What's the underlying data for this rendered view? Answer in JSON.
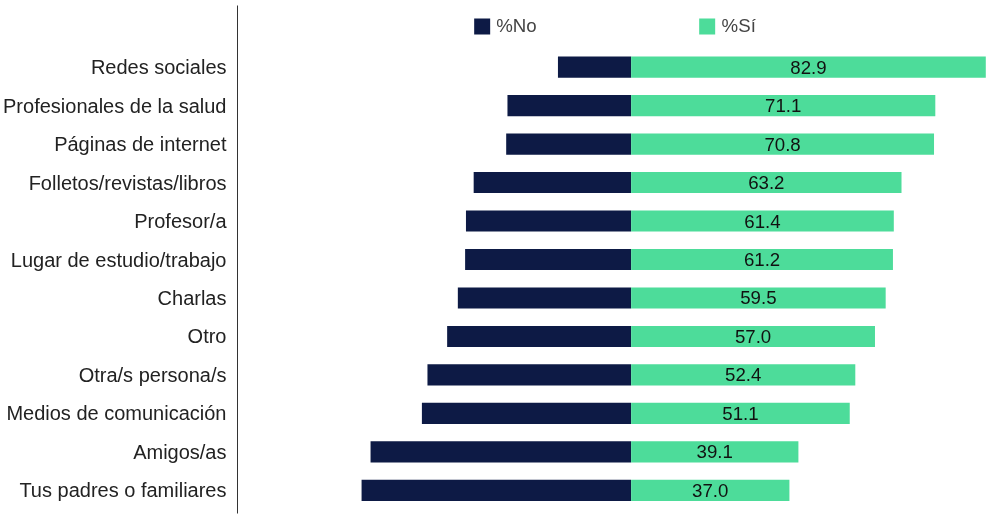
{
  "chart_data": {
    "type": "bar",
    "orientation": "horizontal",
    "stacked": true,
    "categories": [
      "Redes sociales",
      "Profesionales de la salud",
      "Páginas de internet",
      "Folletos/revistas/libros",
      "Profesor/a",
      "Lugar de estudio/trabajo",
      "Charlas",
      "Otro",
      "Otra/s persona/s",
      "Medios de comunicación",
      "Amigos/as",
      "Tus padres o familiares"
    ],
    "series": [
      {
        "name": "%No",
        "color": "#0d1a45",
        "values": [
          -17.1,
          -28.9,
          -29.2,
          -36.8,
          -38.6,
          -38.8,
          -40.5,
          -43.0,
          -47.6,
          -48.9,
          -60.9,
          -63.0
        ]
      },
      {
        "name": "%Sí",
        "color": "#4ddc9a",
        "values": [
          82.9,
          71.1,
          70.8,
          63.2,
          61.4,
          61.2,
          59.5,
          57.0,
          52.4,
          51.1,
          39.1,
          37.0
        ],
        "value_labels": [
          "82.9",
          "71.1",
          "70.8",
          "63.2",
          "61.4",
          "61.2",
          "59.5",
          "57.0",
          "52.4",
          "51.1",
          "39.1",
          "37.0"
        ]
      }
    ],
    "xlim": [
      -92,
      84
    ],
    "tick_labels": "y",
    "legend": "top"
  }
}
